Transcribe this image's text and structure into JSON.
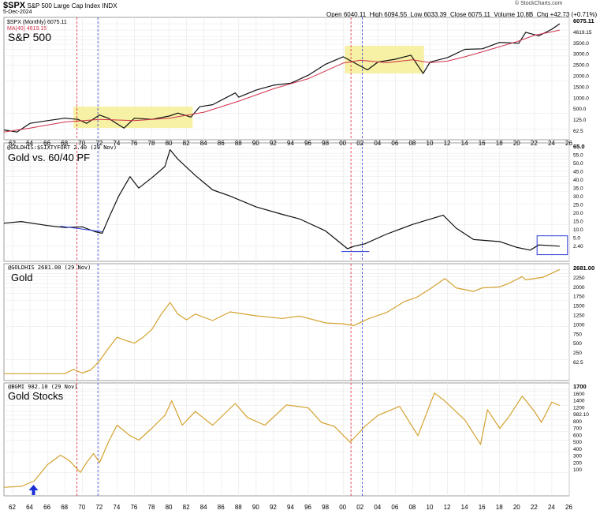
{
  "header": {
    "symbol": "$SPX",
    "name": "S&P 500 Large Cap Index",
    "exchange": "INDX",
    "date": "5-Dec-2024",
    "open_label": "Open",
    "open": "6040.11",
    "high_label": "High",
    "high": "6094.55",
    "low_label": "Low",
    "low": "6033.39",
    "close_label": "Close",
    "close": "6075.11",
    "volume_label": "Volume",
    "volume": "10.8B",
    "chg_label": "Chg",
    "chg": "+42.73 (+0.71%)",
    "brand": "© StockCharts.com"
  },
  "colors": {
    "price_black": "#111111",
    "ma_red": "#d0314a",
    "gold": "#d4a22f",
    "highlight": "#f5ef9a",
    "blue_box": "#2a3ad6",
    "red_dash": "#e0203a",
    "blue_dash": "#2a3ad6",
    "grid": "#e6e6e6",
    "arrow": "#1a2fd6"
  },
  "chart_data": [
    {
      "type": "line",
      "panel": "spx",
      "title": "S&P 500",
      "legend": [
        "$SPX (Monthly) 6075.11",
        "MA(40) 4619.15"
      ],
      "y_scale": "log",
      "y_ticks": [
        "6075.11",
        "4619.15",
        "3500.0",
        "3000.0",
        "2500.0",
        "2000.0",
        "1500.0",
        "1000.0",
        "500.0",
        "125.0",
        "62.5"
      ],
      "series": [
        {
          "name": "$SPX (Monthly)",
          "x": [
            1961,
            1962.5,
            1964,
            1966,
            1968,
            1969.5,
            1970.5,
            1972,
            1973,
            1974.8,
            1976,
            1978,
            1980,
            1981,
            1982.5,
            1983.5,
            1985,
            1987.6,
            1988,
            1990,
            1992,
            1994,
            1996,
            1998,
            2000,
            2002.8,
            2004,
            2006,
            2007.8,
            2009.2,
            2010,
            2012,
            2014,
            2016,
            2018,
            2020.2,
            2021,
            2022.5,
            2024,
            2024.9
          ],
          "values": [
            60,
            55,
            80,
            90,
            100,
            95,
            80,
            115,
            100,
            65,
            100,
            95,
            110,
            125,
            105,
            165,
            180,
            300,
            250,
            340,
            420,
            460,
            650,
            1050,
            1450,
            820,
            1150,
            1300,
            1550,
            700,
            1150,
            1400,
            2000,
            2050,
            2700,
            2600,
            4200,
            3600,
            4800,
            6075
          ]
        },
        {
          "name": "MA(40)",
          "x": [
            1961,
            1964,
            1968,
            1972,
            1976,
            1980,
            1984,
            1988,
            1992,
            1996,
            2000,
            2002,
            2005,
            2008,
            2010,
            2012,
            2014,
            2016,
            2018,
            2020,
            2022,
            2024,
            2024.9
          ],
          "values": [
            55,
            65,
            85,
            95,
            90,
            100,
            130,
            210,
            360,
            560,
            1100,
            1250,
            1120,
            1270,
            1120,
            1200,
            1450,
            1800,
            2250,
            2800,
            3700,
            4300,
            4619
          ]
        }
      ],
      "highlights": [
        [
          1969,
          1982.7
        ],
        [
          2000.2,
          2009.3
        ]
      ]
    },
    {
      "type": "line",
      "panel": "ratio",
      "title": "Gold vs. 60/40 PF",
      "legend": "@GOLDHIS:$SIXTYFORT 2.40 (29 Nov)",
      "y_scale": "log",
      "y_ticks": [
        "65.0",
        "55.0",
        "50.0",
        "45.0",
        "40.0",
        "35.0",
        "30.0",
        "25.0",
        "20.0",
        "15.0",
        "10.0",
        "5.0",
        "2.40"
      ],
      "series": [
        {
          "name": "@GOLDHIS:$SIXTYFORT",
          "x": [
            1961,
            1963,
            1966,
            1968,
            1970,
            1971.5,
            1972.3,
            1973,
            1974.2,
            1975.5,
            1976.5,
            1978,
            1979.5,
            1980.1,
            1981,
            1983,
            1985,
            1987,
            1990,
            1993,
            1995,
            1998,
            2000.5,
            2001.3,
            2002.5,
            2005,
            2008,
            2011.5,
            2013,
            2015,
            2018,
            2020,
            2021.5,
            2022.5,
            2024.9
          ],
          "values": [
            5.2,
            5.5,
            4.8,
            4.5,
            4.6,
            3.9,
            3.7,
            6,
            13,
            25,
            17,
            24,
            35,
            62,
            45,
            26,
            16,
            13,
            9,
            7,
            6,
            4,
            2.2,
            2.4,
            2.6,
            3.6,
            5,
            6.8,
            4.4,
            3.0,
            2.8,
            2.3,
            2.1,
            2.5,
            2.4
          ]
        }
      ],
      "trendlines": [
        {
          "x": [
            1967.5,
            1972.3
          ],
          "values": [
            4.7,
            3.9
          ]
        },
        {
          "x": [
            1999.8,
            2003
          ],
          "values": [
            2.0,
            2.0
          ]
        }
      ],
      "box": {
        "x": [
          2022.3,
          2025.8
        ],
        "values": [
          1.8,
          3.4
        ]
      }
    },
    {
      "type": "line",
      "panel": "gold",
      "title": "Gold",
      "legend": "@GOLDHIS 2681.00 (29 Nov)",
      "y_scale": "log",
      "y_ticks": [
        "2681.00",
        "2250",
        "2000",
        "1750",
        "1500",
        "1250",
        "1000",
        "750",
        "500",
        "250",
        "62.5"
      ],
      "series": [
        {
          "name": "@GOLDHIS",
          "x": [
            1961,
            1968,
            1969,
            1970,
            1971,
            1972,
            1973,
            1974,
            1975,
            1976,
            1977,
            1978,
            1979,
            1980.1,
            1981,
            1982,
            1983,
            1985,
            1987,
            1990,
            1993,
            1995,
            1998,
            2000,
            2001.2,
            2003,
            2005,
            2007,
            2008.5,
            2010,
            2011.7,
            2013,
            2015,
            2016,
            2018,
            2019,
            2020.6,
            2021,
            2023,
            2024.9
          ],
          "values": [
            35,
            35,
            42,
            36,
            41,
            60,
            100,
            160,
            140,
            125,
            160,
            220,
            400,
            680,
            420,
            330,
            420,
            320,
            460,
            390,
            350,
            385,
            290,
            280,
            260,
            350,
            450,
            700,
            850,
            1200,
            1850,
            1250,
            1080,
            1250,
            1300,
            1500,
            2000,
            1750,
            1950,
            2681
          ]
        }
      ]
    },
    {
      "type": "line",
      "panel": "bgmi",
      "title": "Gold Stocks",
      "legend": "@BGMI 982.10 (29 Nov)",
      "y_scale": "log",
      "y_ticks": [
        "1700",
        "1600",
        "1400",
        "1200",
        "982.10",
        "800",
        "700",
        "600",
        "500",
        "400",
        "300",
        "200",
        "100"
      ],
      "series": [
        {
          "name": "@BGMI",
          "x": [
            1961,
            1963,
            1964.5,
            1966,
            1967.5,
            1968.5,
            1969.8,
            1970.5,
            1971.3,
            1972,
            1973,
            1974,
            1975.5,
            1976.5,
            1978,
            1979.5,
            1980.3,
            1981.5,
            1983,
            1985,
            1987.6,
            1989,
            1991,
            1993.5,
            1996,
            1997.5,
            1999,
            2000.8,
            2002.5,
            2004,
            2006.5,
            2008.6,
            2010.5,
            2011.5,
            2014,
            2015.8,
            2016.6,
            2018,
            2019,
            2020.6,
            2022,
            2022.8,
            2024,
            2024.9
          ],
          "values": [
            60,
            62,
            75,
            130,
            180,
            150,
            100,
            140,
            190,
            140,
            280,
            500,
            350,
            300,
            450,
            700,
            1150,
            500,
            800,
            500,
            1050,
            650,
            500,
            1000,
            900,
            550,
            480,
            280,
            480,
            700,
            950,
            350,
            1500,
            1200,
            600,
            260,
            850,
            450,
            650,
            1350,
            800,
            550,
            1100,
            982
          ]
        }
      ],
      "marker": {
        "label": "up-arrow",
        "x": 1964.4
      }
    }
  ],
  "x_axis": {
    "start": 1961,
    "end": 2026,
    "tick_labels": [
      "62",
      "64",
      "66",
      "68",
      "70",
      "72",
      "74",
      "76",
      "78",
      "80",
      "82",
      "84",
      "86",
      "88",
      "90",
      "92",
      "94",
      "96",
      "98",
      "00",
      "02",
      "04",
      "06",
      "08",
      "10",
      "12",
      "14",
      "16",
      "18",
      "20",
      "22",
      "24",
      "26"
    ]
  },
  "vlines": {
    "red": [
      1969.4,
      2000.9
    ],
    "blue": [
      1971.8,
      2002.2
    ]
  }
}
